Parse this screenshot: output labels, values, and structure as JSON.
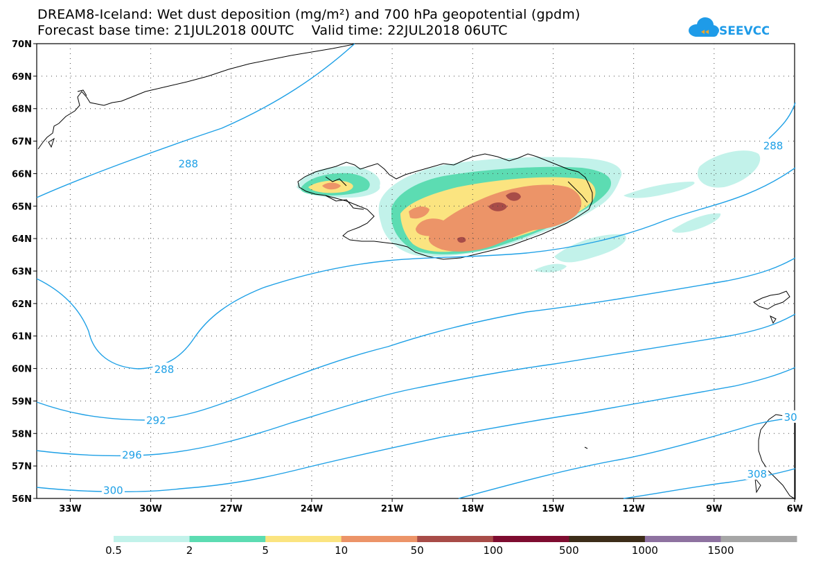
{
  "title": {
    "line1": "DREAM8-Iceland: Wet dust deposition (mg/m²) and 700 hPa geopotential (gpdm)",
    "line2": "Forecast base time: 21JUL2018 00UTC    Valid time: 22JUL2018 06UTC"
  },
  "logo": {
    "text": "SEEVCCC",
    "icon": "cloud-icon",
    "color": "#1e9be8",
    "accent": "#f5a623"
  },
  "map": {
    "latitude_labels": [
      "70N",
      "69N",
      "68N",
      "67N",
      "66N",
      "65N",
      "64N",
      "63N",
      "62N",
      "61N",
      "60N",
      "59N",
      "58N",
      "57N",
      "56N"
    ],
    "longitude_labels": [
      "33W",
      "30W",
      "27W",
      "24W",
      "21W",
      "18W",
      "15W",
      "12W",
      "9W",
      "6W"
    ],
    "lat_range": [
      56,
      70
    ],
    "lon_range": [
      -34.25,
      -6
    ],
    "grid": "dotted"
  },
  "contours": {
    "color": "#1ea0e6",
    "labels": [
      {
        "text": "288",
        "lon": -28.6,
        "lat": 66.3
      },
      {
        "text": "288",
        "lon": -29.5,
        "lat": 59.97
      },
      {
        "text": "292",
        "lon": -29.8,
        "lat": 58.4
      },
      {
        "text": "296",
        "lon": -30.7,
        "lat": 57.33
      },
      {
        "text": "300",
        "lon": -31.4,
        "lat": 56.25
      },
      {
        "text": "288",
        "lon": -6.8,
        "lat": 66.85
      },
      {
        "text": "30",
        "lon": -6.15,
        "lat": 58.5
      },
      {
        "text": "308",
        "lon": -7.4,
        "lat": 56.75
      }
    ]
  },
  "legend": {
    "colors": [
      "#c2f2ea",
      "#5cdcb2",
      "#fbe480",
      "#ec9468",
      "#a84c48",
      "#7e0c30",
      "#3d2d19",
      "#8e72a0",
      "#a6a6a6"
    ],
    "labels": [
      "0.5",
      "2",
      "5",
      "10",
      "50",
      "100",
      "500",
      "1000",
      "1500"
    ]
  }
}
